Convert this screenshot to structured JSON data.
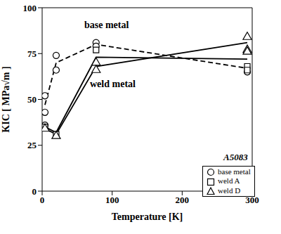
{
  "chart_data": {
    "type": "scatter",
    "title": "A5083",
    "xlabel": "Temperature [K]",
    "ylabel": "KIC [ MPa√m ]",
    "xlim": [
      0,
      300
    ],
    "xticks": [
      0,
      100,
      200,
      300
    ],
    "ylim": [
      0,
      100
    ],
    "yticks": [
      0,
      25,
      50,
      75,
      100
    ],
    "grid": false,
    "legend": "lower right",
    "annotations": [
      "base metal",
      "weld metal"
    ],
    "series": [
      {
        "name": "base metal",
        "marker": "circle",
        "color": "#000000",
        "x": [
          4,
          4,
          4,
          20,
          20,
          77,
          77,
          293
        ],
        "values": [
          52,
          43,
          36,
          74,
          66,
          81,
          79,
          65
        ],
        "line": {
          "x": [
            4,
            20,
            77,
            293
          ],
          "values": [
            47,
            70,
            80,
            67
          ],
          "line_style": "dashed"
        }
      },
      {
        "name": "weld A",
        "marker": "square",
        "color": "#000000",
        "x": [
          4,
          20,
          77,
          293,
          293
        ],
        "values": [
          35,
          31,
          77,
          68,
          66
        ],
        "line": {
          "x": [
            4,
            20,
            77,
            293
          ],
          "values": [
            35,
            32,
            73,
            72
          ],
          "line_style": "solid"
        }
      },
      {
        "name": "weld D",
        "marker": "triangle",
        "color": "#000000",
        "x": [
          4,
          20,
          77,
          77,
          293,
          293,
          293
        ],
        "values": [
          34,
          30,
          70,
          66,
          84,
          77,
          76
        ],
        "line": {
          "x": [
            4,
            20,
            77,
            293
          ],
          "values": [
            34,
            31,
            68,
            81
          ],
          "line_style": "solid"
        }
      }
    ]
  }
}
